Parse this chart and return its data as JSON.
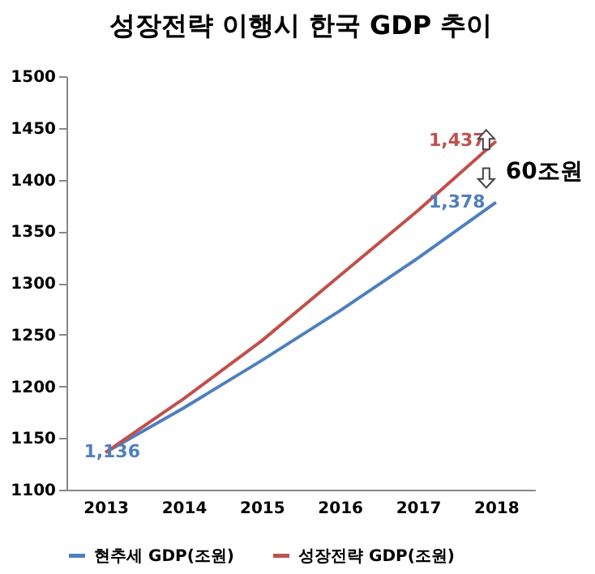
{
  "chart_data": {
    "type": "line",
    "title": "성장전략 이행시 한국 GDP 추이",
    "categories": [
      "2013",
      "2014",
      "2015",
      "2016",
      "2017",
      "2018"
    ],
    "series": [
      {
        "name": "현추세 GDP(조원)",
        "color": "#4f7fbd",
        "values": [
          1136,
          1179,
          1225,
          1273,
          1324,
          1378
        ],
        "value_labels": [
          "1,136",
          null,
          null,
          null,
          null,
          "1,378"
        ]
      },
      {
        "name": "성장전략 GDP(조원)",
        "color": "#c0504d",
        "values": [
          1136,
          1188,
          1244,
          1307,
          1370,
          1437
        ],
        "value_labels": [
          null,
          null,
          null,
          null,
          null,
          "1,437"
        ]
      }
    ],
    "ylim": [
      1100,
      1500
    ],
    "yticks": [
      1100,
      1150,
      1200,
      1250,
      1300,
      1350,
      1400,
      1450,
      1500
    ],
    "annotations": [
      "60조원"
    ],
    "legend": "bottom",
    "grid": false,
    "marker": "none",
    "line_style": "solid"
  }
}
